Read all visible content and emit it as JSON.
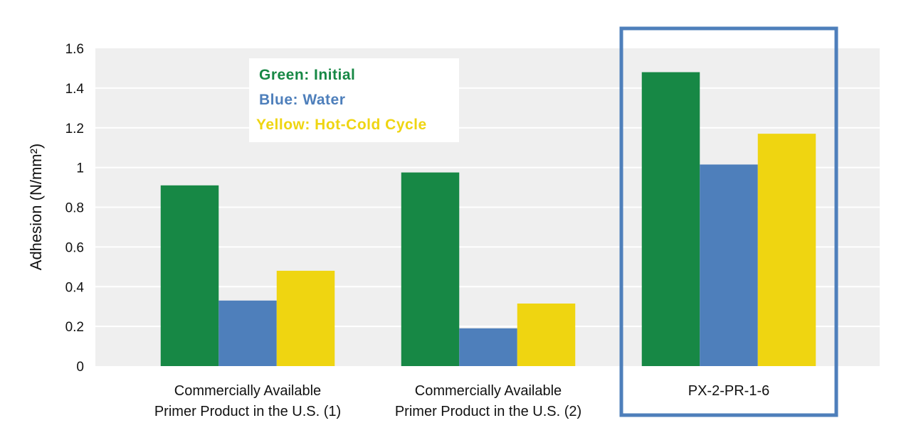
{
  "chart_data": {
    "type": "bar",
    "ylabel": "Adhesion (N/mm²)",
    "ylim": [
      0,
      1.6
    ],
    "yticks": [
      "0",
      "0.2",
      "0.4",
      "0.6",
      "0.8",
      "1",
      "1.2",
      "1.4",
      "1.6"
    ],
    "grid": true,
    "categories": [
      [
        "Commercially Available",
        "Primer Product in the U.S. (1)"
      ],
      [
        "Commercially Available",
        "Primer Product in the U.S. (2)"
      ],
      [
        "PX-2-PR-1-6"
      ]
    ],
    "series": [
      {
        "name": "Initial",
        "color": "#178845",
        "values": [
          0.91,
          0.975,
          1.48
        ]
      },
      {
        "name": "Water",
        "color": "#4e7fbb",
        "values": [
          0.33,
          0.19,
          1.015
        ]
      },
      {
        "name": "Hot-Cold Cycle",
        "color": "#efd511",
        "values": [
          0.48,
          0.315,
          1.17
        ]
      }
    ],
    "legend": {
      "placement": "top-left",
      "entries": [
        {
          "text": "Green: Initial",
          "color": "#178845"
        },
        {
          "text": "Blue: Water",
          "color": "#4e7fbb"
        },
        {
          "text": "Yellow: Hot-Cold Cycle",
          "color": "#efd511"
        }
      ]
    },
    "highlight": {
      "category_index": 2,
      "color": "#4e7fbb"
    },
    "plot_background": "#efefef"
  }
}
